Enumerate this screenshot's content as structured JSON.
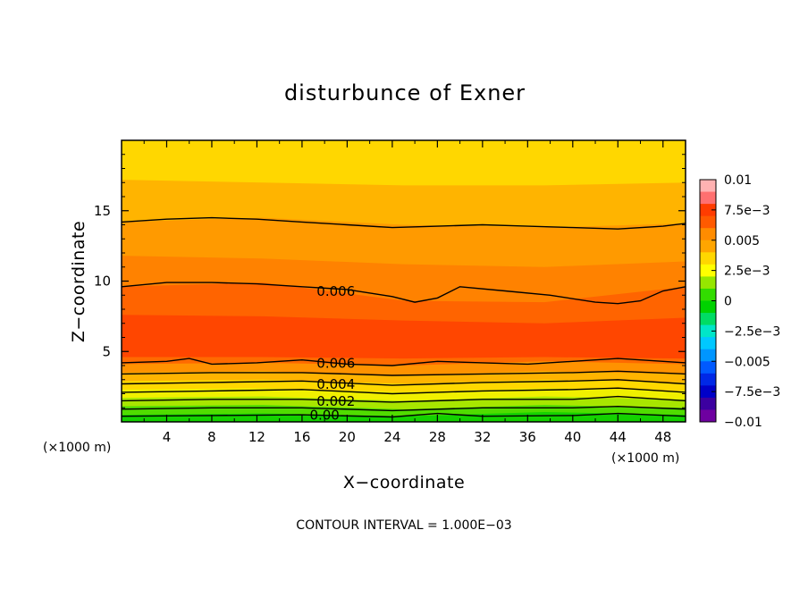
{
  "chart_data": {
    "type": "contour",
    "title": "disturbunce of Exner",
    "xlabel": "X−coordinate",
    "ylabel": "Z−coordinate",
    "x_unit": "(×1000 m)",
    "z_unit": "(×1000 m)",
    "xlim": [
      0,
      50
    ],
    "zlim": [
      0,
      20
    ],
    "xticks": [
      4,
      8,
      12,
      16,
      20,
      24,
      28,
      32,
      36,
      40,
      44,
      48
    ],
    "zticks": [
      5,
      10,
      15
    ],
    "contour_interval_text": "CONTOUR INTERVAL = 1.000E−03",
    "colorbar": {
      "min": -0.01,
      "max": 0.01,
      "labels": [
        "0.01",
        "7.5e−3",
        "0.005",
        "2.5e−3",
        "0",
        "−2.5e−3",
        "−0.005",
        "−7.5e−3",
        "−0.01"
      ],
      "label_values": [
        0.01,
        0.0075,
        0.005,
        0.0025,
        0,
        -0.0025,
        -0.005,
        -0.0075,
        -0.01
      ],
      "colors": [
        "#ffb2b2",
        "#ff7070",
        "#ff3c00",
        "#ff5a00",
        "#ff8c00",
        "#ffa500",
        "#ffd700",
        "#ffff00",
        "#96e600",
        "#32dc00",
        "#00d200",
        "#00dc64",
        "#00e6c8",
        "#00c8ff",
        "#0096ff",
        "#005aff",
        "#0028e6",
        "#0000c8",
        "#3c00a0",
        "#6e00a0"
      ]
    },
    "contour_labels": [
      {
        "text": "0.006",
        "x": 19,
        "z": 9.2
      },
      {
        "text": "0.006",
        "x": 19,
        "z": 4.1
      },
      {
        "text": "0.004",
        "x": 19,
        "z": 2.6
      },
      {
        "text": "0.002",
        "x": 19,
        "z": 1.4
      },
      {
        "text": "0.00",
        "x": 18,
        "z": 0.4
      }
    ],
    "contour_levels": [
      {
        "value": 0.006,
        "x": [
          0,
          4,
          8,
          12,
          16,
          20,
          24,
          26,
          28,
          30,
          34,
          38,
          42,
          44,
          46,
          48,
          50
        ],
        "z": [
          9.6,
          9.9,
          9.9,
          9.8,
          9.6,
          9.4,
          8.9,
          8.5,
          8.8,
          9.6,
          9.3,
          9.0,
          8.5,
          8.4,
          8.6,
          9.3,
          9.6
        ]
      },
      {
        "value": 0.005,
        "x": [
          0,
          4,
          8,
          12,
          16,
          20,
          24,
          28,
          32,
          36,
          40,
          44,
          48,
          50
        ],
        "z": [
          14.2,
          14.4,
          14.5,
          14.4,
          14.2,
          14.0,
          13.8,
          13.9,
          14.0,
          13.9,
          13.8,
          13.7,
          13.9,
          14.1
        ]
      },
      {
        "value": 0.006,
        "x": [
          0,
          4,
          6,
          8,
          12,
          16,
          20,
          24,
          28,
          32,
          36,
          40,
          44,
          48,
          50
        ],
        "z": [
          4.2,
          4.3,
          4.5,
          4.1,
          4.2,
          4.4,
          4.1,
          4.0,
          4.3,
          4.2,
          4.1,
          4.3,
          4.5,
          4.3,
          4.2
        ]
      },
      {
        "value": 0.005,
        "x": [
          0,
          8,
          16,
          24,
          32,
          40,
          44,
          50
        ],
        "z": [
          3.4,
          3.5,
          3.5,
          3.3,
          3.4,
          3.5,
          3.6,
          3.4
        ]
      },
      {
        "value": 0.004,
        "x": [
          0,
          8,
          16,
          24,
          32,
          40,
          44,
          50
        ],
        "z": [
          2.7,
          2.8,
          2.9,
          2.6,
          2.8,
          2.9,
          3.0,
          2.7
        ]
      },
      {
        "value": 0.003,
        "x": [
          0,
          8,
          16,
          24,
          32,
          40,
          44,
          50
        ],
        "z": [
          2.1,
          2.2,
          2.3,
          2.0,
          2.2,
          2.3,
          2.4,
          2.1
        ]
      },
      {
        "value": 0.002,
        "x": [
          0,
          8,
          16,
          24,
          32,
          40,
          44,
          50
        ],
        "z": [
          1.5,
          1.6,
          1.6,
          1.4,
          1.6,
          1.6,
          1.8,
          1.5
        ]
      },
      {
        "value": 0.001,
        "x": [
          0,
          8,
          16,
          24,
          32,
          40,
          44,
          50
        ],
        "z": [
          0.9,
          1.0,
          1.0,
          0.8,
          1.0,
          1.0,
          1.1,
          0.9
        ]
      },
      {
        "value": 0.0,
        "x": [
          0,
          8,
          16,
          24,
          28,
          32,
          40,
          44,
          50
        ],
        "z": [
          0.4,
          0.45,
          0.5,
          0.35,
          0.6,
          0.4,
          0.45,
          0.6,
          0.4
        ]
      }
    ]
  }
}
